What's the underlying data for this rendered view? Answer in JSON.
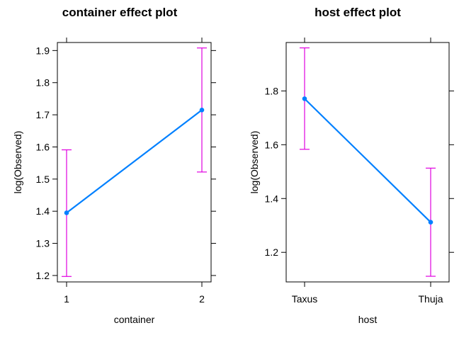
{
  "page": {
    "background": "#ffffff"
  },
  "colors": {
    "line": "#0080ff",
    "errorbar": "#e000e0",
    "axes": "#000000"
  },
  "chart_data": [
    {
      "type": "line",
      "title": "container effect plot",
      "xlabel": "container",
      "ylabel": "log(Observed)",
      "categories": [
        "1",
        "2"
      ],
      "series": [
        {
          "values": [
            1.395,
            1.715
          ],
          "lower": [
            1.197,
            1.522
          ],
          "upper": [
            1.591,
            1.908
          ]
        }
      ],
      "ylim": [
        1.18,
        1.925
      ],
      "yticks": [
        1.2,
        1.3,
        1.4,
        1.5,
        1.6,
        1.7,
        1.8,
        1.9
      ],
      "ytick_labels": [
        "1.2",
        "1.3",
        "1.4",
        "1.5",
        "1.6",
        "1.7",
        "1.8",
        "1.9"
      ],
      "grid": false,
      "legend": "none"
    },
    {
      "type": "line",
      "title": "host effect plot",
      "xlabel": "host",
      "ylabel": "log(Observed)",
      "categories": [
        "Taxus",
        "Thuja"
      ],
      "series": [
        {
          "values": [
            1.771,
            1.312
          ],
          "lower": [
            1.583,
            1.111
          ],
          "upper": [
            1.96,
            1.513
          ]
        }
      ],
      "ylim": [
        1.09,
        1.98
      ],
      "yticks": [
        1.2,
        1.4,
        1.6,
        1.8
      ],
      "ytick_labels": [
        "1.2",
        "1.4",
        "1.6",
        "1.8"
      ],
      "grid": false,
      "legend": "none"
    }
  ]
}
